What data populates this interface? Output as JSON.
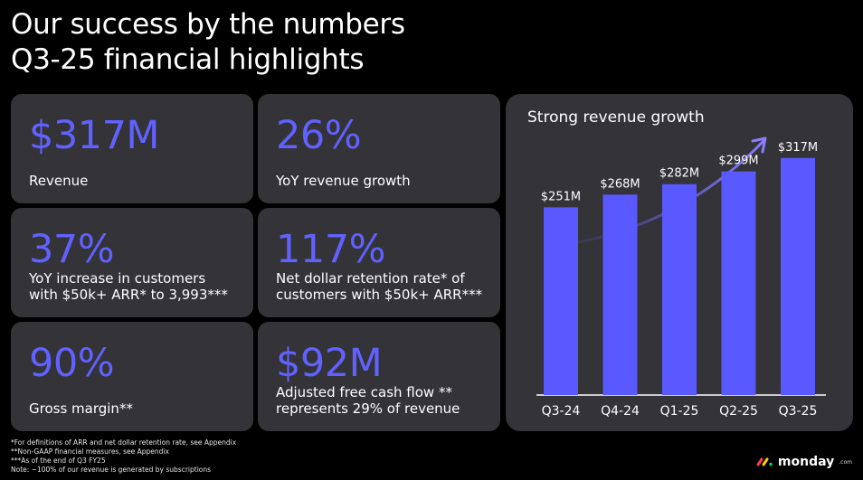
{
  "header": {
    "title_line1": "Our success by the numbers",
    "title_line2": "Q3-25 financial highlights"
  },
  "cards": [
    {
      "value": "$317M",
      "label": "Revenue"
    },
    {
      "value": "26%",
      "label": "YoY revenue growth"
    },
    {
      "value": "37%",
      "label": "YoY increase in customers\nwith $50k+ ARR* to 3,993***"
    },
    {
      "value": "117%",
      "label": "Net dollar retention rate* of\ncustomers with $50k+ ARR***"
    },
    {
      "value": "90%",
      "label": "Gross margin**"
    },
    {
      "value": "$92M",
      "label": "Adjusted free cash flow **\nrepresents 29% of revenue"
    }
  ],
  "chart_data": {
    "type": "bar",
    "title": "Strong revenue growth",
    "categories": [
      "Q3-24",
      "Q4-24",
      "Q1-25",
      "Q2-25",
      "Q3-25"
    ],
    "values": [
      251,
      268,
      282,
      299,
      317
    ],
    "data_labels": [
      "$251M",
      "$268M",
      "$282M",
      "$299M",
      "$317M"
    ],
    "ylim": [
      0,
      330
    ],
    "color": "#5a59ff",
    "trend_arrow": true
  },
  "footnotes": [
    "*For definitions of ARR and net dollar retention rate, see Appendix",
    "**Non-GAAP financial measures, see Appendix",
    "***As of the end of Q3 FY25",
    "Note: ~100% of our revenue is generated by subscriptions"
  ],
  "brand": {
    "name": "monday",
    "suffix": ".com",
    "colors": [
      "#ff3d57",
      "#ffcb00",
      "#00d647"
    ]
  },
  "colors": {
    "accent": "#6161ff",
    "card_bg": "#333338",
    "bar": "#5a59ff"
  }
}
